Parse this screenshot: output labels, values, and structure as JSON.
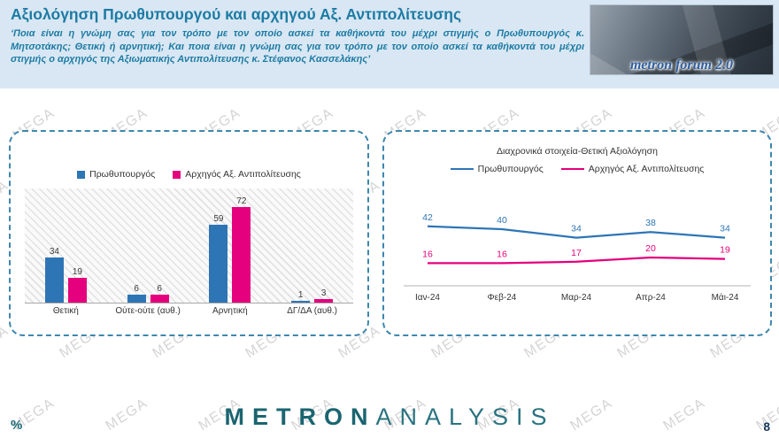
{
  "header": {
    "title": "Αξιολόγηση Πρωθυπουργού και αρχηγού Αξ. Αντιπολίτευσης",
    "subtitle": "‘Ποια είναι η γνώμη σας για τον τρόπο με τον οποίο ασκεί τα καθήκοντά του μέχρι στιγμής ο Πρωθυπουργός κ. Μητσοτάκης; Θετική ή αρνητική; Και ποια είναι η γνώμη σας για τον τρόπο με τον οποίο ασκεί τα καθήκοντά του μέχρι στιγμής ο αρχηγός της Αξιωματικής Αντιπολίτευσης κ. Στέφανος Κασσελάκης’",
    "logo_text": "metron forum 2.0"
  },
  "colors": {
    "pm_blue": "#2e75b6",
    "opposition_pink": "#e5007d",
    "header_bg": "#d8e7f3",
    "title_teal": "#1d7ba4",
    "panel_border": "#3e87ad"
  },
  "chart_data": [
    {
      "type": "bar",
      "categories": [
        "Θετική",
        "Ούτε-ούτε (αυθ.)",
        "Αρνητική",
        "ΔΓ/ΔΑ (αυθ.)"
      ],
      "series": [
        {
          "name": "Πρωθυπουργός",
          "color": "#2e75b6",
          "values": [
            34,
            6,
            59,
            1
          ]
        },
        {
          "name": "Αρχηγός Αξ. Αντιπολίτευσης",
          "color": "#e5007d",
          "values": [
            19,
            6,
            72,
            3
          ]
        }
      ],
      "ylim": [
        0,
        75
      ],
      "legend_position": "top",
      "grid": false
    },
    {
      "type": "line",
      "title": "Διαχρονικά στοιχεία-Θετική Αξιολόγηση",
      "categories": [
        "Ιαν-24",
        "Φεβ-24",
        "Μαρ-24",
        "Απρ-24",
        "Μάι-24"
      ],
      "series": [
        {
          "name": "Πρωθυπουργός",
          "color": "#2e75b6",
          "values": [
            42,
            40,
            34,
            38,
            34
          ]
        },
        {
          "name": "Αρχηγός Αξ. Αντιπολίτευσης",
          "color": "#e5007d",
          "values": [
            16,
            16,
            17,
            20,
            19
          ]
        }
      ],
      "ylim": [
        0,
        55
      ],
      "legend_position": "top",
      "grid": false
    }
  ],
  "footer": {
    "percent_label": "%",
    "brand_metron": "METRON",
    "brand_analysis": "ANALYSIS",
    "page_number": "8"
  },
  "watermark": {
    "text": "MEGA"
  }
}
